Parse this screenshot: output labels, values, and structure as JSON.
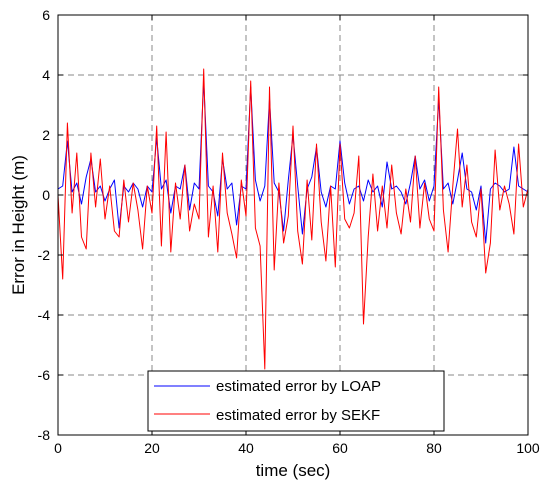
{
  "chart_data": {
    "type": "line",
    "xlabel": "time (sec)",
    "ylabel": "Error in Height  (m)",
    "xlim": [
      0,
      100
    ],
    "ylim": [
      -8,
      6
    ],
    "xticks": [
      0,
      20,
      40,
      60,
      80,
      100
    ],
    "yticks": [
      -8,
      -6,
      -4,
      -2,
      0,
      2,
      4,
      6
    ],
    "grid": true,
    "legend_position": "bottom-center",
    "series": [
      {
        "name": "estimated error by LOAP",
        "color": "#0000ff",
        "x": [
          0,
          1,
          2,
          3,
          4,
          5,
          6,
          7,
          8,
          9,
          10,
          11,
          12,
          13,
          14,
          15,
          16,
          17,
          18,
          19,
          20,
          21,
          22,
          23,
          24,
          25,
          26,
          27,
          28,
          29,
          30,
          31,
          32,
          33,
          34,
          35,
          36,
          37,
          38,
          39,
          40,
          41,
          42,
          43,
          44,
          45,
          46,
          47,
          48,
          49,
          50,
          51,
          52,
          53,
          54,
          55,
          56,
          57,
          58,
          59,
          60,
          61,
          62,
          63,
          64,
          65,
          66,
          67,
          68,
          69,
          70,
          71,
          72,
          73,
          74,
          75,
          76,
          77,
          78,
          79,
          80,
          81,
          82,
          83,
          84,
          85,
          86,
          87,
          88,
          89,
          90,
          91,
          92,
          93,
          94,
          95,
          96,
          97,
          98,
          99,
          100
        ],
        "y": [
          0.2,
          0.3,
          1.8,
          0.1,
          0.4,
          -0.3,
          0.6,
          1.2,
          0.1,
          0.3,
          -0.2,
          0.2,
          0.5,
          -1.1,
          0.3,
          0.1,
          0.4,
          0.2,
          -0.4,
          0.3,
          0.1,
          1.9,
          0.2,
          0.5,
          -0.6,
          0.3,
          0.2,
          1.0,
          -0.5,
          0.4,
          0.2,
          3.8,
          0.3,
          0.1,
          -0.7,
          1.2,
          0.2,
          0.4,
          -1.0,
          0.3,
          0.2,
          3.6,
          0.5,
          -0.2,
          0.3,
          3.2,
          0.4,
          0.1,
          -1.2,
          0.5,
          2.0,
          0.3,
          -1.3,
          0.2,
          0.6,
          1.6,
          0.1,
          -0.4,
          0.3,
          0.2,
          1.8,
          0.4,
          -0.3,
          0.2,
          0.3,
          -0.2,
          0.5,
          0.1,
          0.3,
          -0.4,
          1.1,
          0.2,
          0.3,
          0.1,
          -0.3,
          0.4,
          1.3,
          0.2,
          0.5,
          -0.2,
          0.3,
          3.2,
          0.2,
          0.4,
          -0.3,
          0.5,
          1.4,
          0.2,
          0.1,
          -0.5,
          0.3,
          -1.6,
          0.2,
          0.4,
          0.3,
          0.1,
          0.2,
          1.6,
          0.3,
          0.2,
          0.1
        ]
      },
      {
        "name": "estimated error by  SEKF",
        "color": "#ff0000",
        "x": [
          0,
          1,
          2,
          3,
          4,
          5,
          6,
          7,
          8,
          9,
          10,
          11,
          12,
          13,
          14,
          15,
          16,
          17,
          18,
          19,
          20,
          21,
          22,
          23,
          24,
          25,
          26,
          27,
          28,
          29,
          30,
          31,
          32,
          33,
          34,
          35,
          36,
          37,
          38,
          39,
          40,
          41,
          42,
          43,
          44,
          45,
          46,
          47,
          48,
          49,
          50,
          51,
          52,
          53,
          54,
          55,
          56,
          57,
          58,
          59,
          60,
          61,
          62,
          63,
          64,
          65,
          66,
          67,
          68,
          69,
          70,
          71,
          72,
          73,
          74,
          75,
          76,
          77,
          78,
          79,
          80,
          81,
          82,
          83,
          84,
          85,
          86,
          87,
          88,
          89,
          90,
          91,
          92,
          93,
          94,
          95,
          96,
          97,
          98,
          99,
          100
        ],
        "y": [
          0.0,
          -2.8,
          2.4,
          -0.6,
          1.4,
          -1.4,
          -1.8,
          1.4,
          -0.4,
          1.2,
          -0.8,
          0.3,
          -1.2,
          -1.4,
          0.5,
          -0.9,
          0.4,
          -0.5,
          -1.8,
          0.3,
          -0.6,
          2.3,
          -1.7,
          2.1,
          -1.9,
          0.4,
          -0.8,
          1.0,
          -1.2,
          -0.3,
          -0.8,
          4.2,
          -1.4,
          0.3,
          -1.9,
          1.4,
          -0.6,
          -1.3,
          -2.1,
          0.5,
          -0.7,
          3.8,
          -1.1,
          -1.7,
          -5.8,
          3.6,
          -2.5,
          0.4,
          -1.6,
          -0.7,
          2.3,
          -1.2,
          -2.3,
          0.5,
          -1.5,
          1.7,
          -0.9,
          -2.2,
          0.3,
          -2.4,
          1.7,
          -0.8,
          -1.1,
          -0.6,
          1.3,
          -4.3,
          -1.4,
          0.7,
          -1.2,
          0.3,
          -1.1,
          1.0,
          -0.6,
          -1.3,
          0.2,
          -0.9,
          1.3,
          -1.1,
          0.4,
          -0.8,
          -1.2,
          3.6,
          -0.5,
          -1.9,
          0.3,
          2.2,
          -0.4,
          1.0,
          -0.9,
          -1.4,
          0.2,
          -2.6,
          -1.6,
          1.5,
          -0.5,
          0.3,
          -0.3,
          -1.3,
          1.7,
          -0.4,
          0.2
        ]
      }
    ]
  }
}
